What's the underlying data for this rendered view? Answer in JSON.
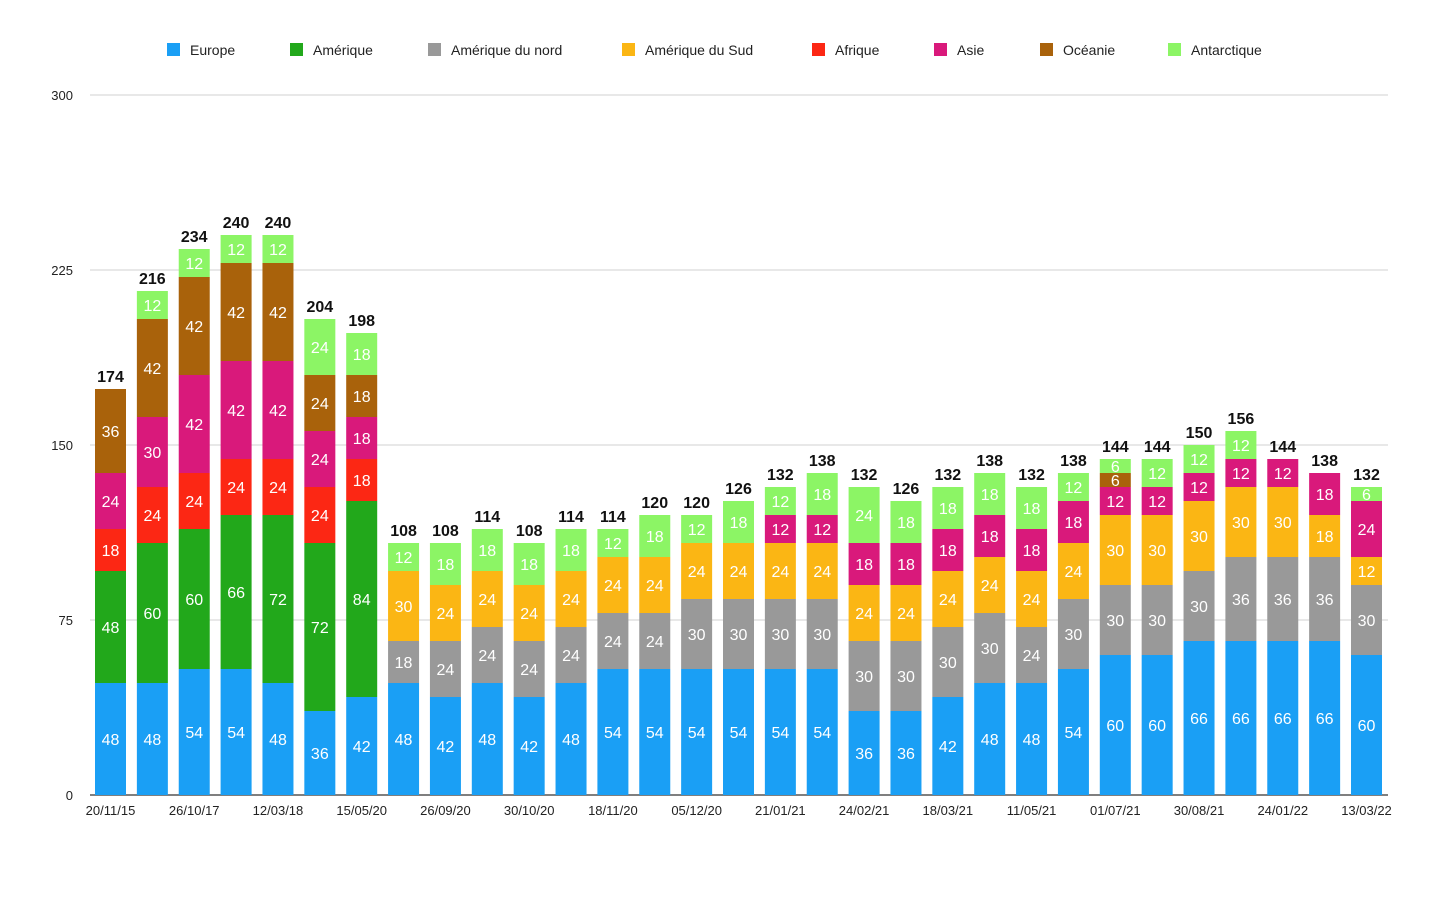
{
  "chart_data": {
    "type": "bar",
    "stacked": true,
    "title": "",
    "xlabel": "",
    "ylabel": "",
    "ylim": [
      0,
      300
    ],
    "yticks": [
      0,
      75,
      150,
      225,
      300
    ],
    "grid": true,
    "legend_position": "top",
    "categories": [
      "20/11/15",
      "",
      "26/10/17",
      "",
      "12/03/18",
      "",
      "15/05/20",
      "",
      "26/09/20",
      "",
      "30/10/20",
      "",
      "18/11/20",
      "",
      "05/12/20",
      "",
      "21/01/21",
      "",
      "24/02/21",
      "",
      "18/03/21",
      "",
      "11/05/21",
      "",
      "01/07/21",
      "",
      "30/08/21",
      "",
      "24/01/22",
      "",
      "13/03/22"
    ],
    "series": [
      {
        "name": "Europe",
        "color": "#1a9ff5",
        "values": [
          48,
          48,
          54,
          54,
          48,
          36,
          42,
          48,
          42,
          48,
          42,
          48,
          54,
          54,
          54,
          54,
          54,
          54,
          36,
          36,
          42,
          48,
          48,
          54,
          60,
          60,
          66,
          66,
          66,
          66,
          60
        ]
      },
      {
        "name": "Amérique",
        "color": "#22a81b",
        "values": [
          48,
          60,
          60,
          66,
          72,
          72,
          84,
          0,
          0,
          0,
          0,
          0,
          0,
          0,
          0,
          0,
          0,
          0,
          0,
          0,
          0,
          0,
          0,
          0,
          0,
          0,
          0,
          0,
          0,
          0,
          0
        ]
      },
      {
        "name": "Amérique du nord",
        "color": "#999999",
        "values": [
          0,
          0,
          0,
          0,
          0,
          0,
          0,
          18,
          24,
          24,
          24,
          24,
          24,
          24,
          30,
          30,
          30,
          30,
          30,
          30,
          30,
          30,
          24,
          30,
          30,
          30,
          30,
          36,
          36,
          36,
          30
        ]
      },
      {
        "name": "Amérique du Sud",
        "color": "#fbb614",
        "values": [
          0,
          0,
          0,
          0,
          0,
          0,
          0,
          30,
          24,
          24,
          24,
          24,
          24,
          24,
          24,
          24,
          24,
          24,
          24,
          24,
          24,
          24,
          24,
          24,
          30,
          30,
          30,
          30,
          30,
          18,
          12
        ]
      },
      {
        "name": "Afrique",
        "color": "#fc2714",
        "values": [
          18,
          24,
          24,
          24,
          24,
          24,
          18,
          0,
          0,
          0,
          0,
          0,
          0,
          0,
          0,
          0,
          0,
          0,
          0,
          0,
          0,
          0,
          0,
          0,
          0,
          0,
          0,
          0,
          0,
          0,
          0
        ]
      },
      {
        "name": "Asie",
        "color": "#d9197b",
        "values": [
          24,
          30,
          42,
          42,
          42,
          24,
          18,
          0,
          0,
          0,
          0,
          0,
          0,
          0,
          0,
          0,
          12,
          12,
          18,
          18,
          18,
          18,
          18,
          18,
          12,
          12,
          12,
          12,
          12,
          18,
          24
        ]
      },
      {
        "name": "Océanie",
        "color": "#a9620b",
        "values": [
          36,
          42,
          42,
          42,
          42,
          24,
          18,
          0,
          0,
          0,
          0,
          0,
          0,
          0,
          0,
          0,
          0,
          0,
          0,
          0,
          0,
          0,
          0,
          0,
          6,
          0,
          0,
          0,
          0,
          0,
          0
        ]
      },
      {
        "name": "Antarctique",
        "color": "#8cf565",
        "values": [
          0,
          12,
          12,
          12,
          12,
          24,
          18,
          12,
          18,
          18,
          18,
          18,
          12,
          18,
          12,
          18,
          12,
          18,
          24,
          18,
          18,
          18,
          18,
          12,
          6,
          12,
          12,
          12,
          0,
          0,
          6
        ]
      }
    ],
    "totals": [
      174,
      216,
      234,
      240,
      240,
      204,
      198,
      108,
      108,
      114,
      108,
      114,
      114,
      120,
      120,
      126,
      132,
      138,
      132,
      126,
      132,
      138,
      132,
      138,
      144,
      144,
      150,
      156,
      144,
      138,
      132
    ]
  }
}
